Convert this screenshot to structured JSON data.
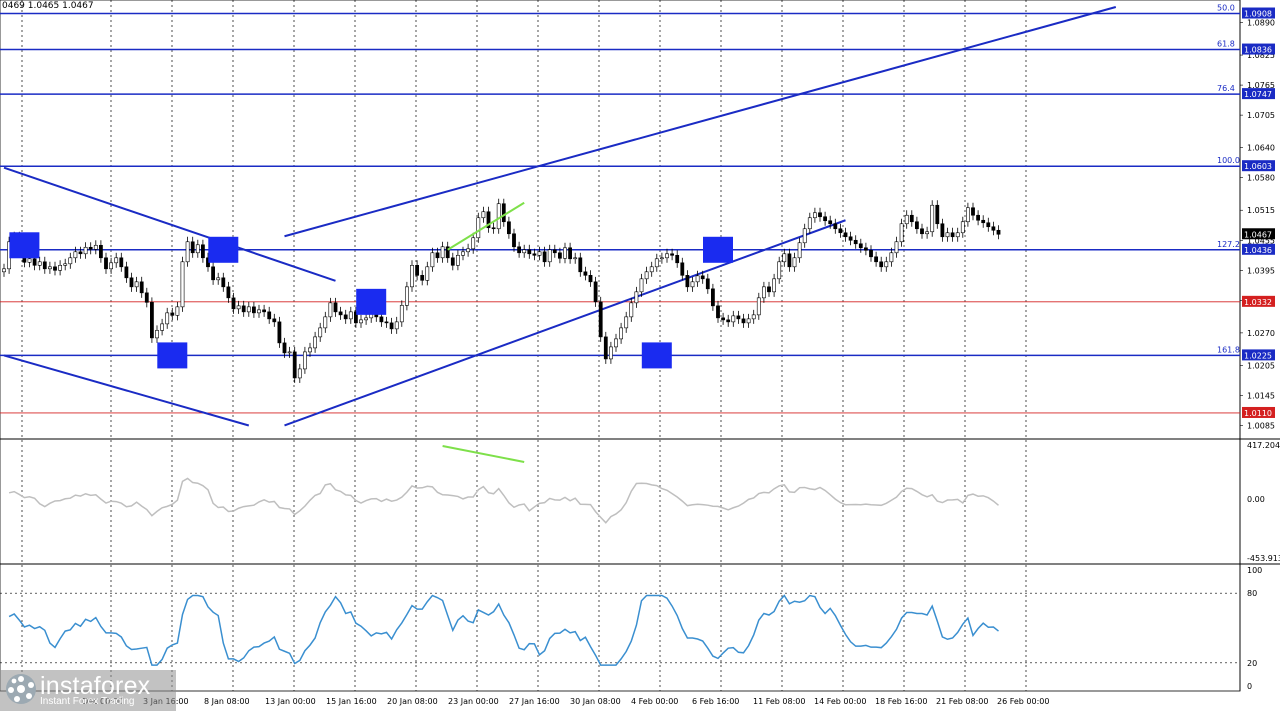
{
  "header": {
    "ohlc_text": "0469 1.0465 1.0467"
  },
  "brand": {
    "name": "instaforex",
    "tagline": "Instant Forex Trading"
  },
  "chart_data": [
    {
      "panel": "price",
      "type": "candlestick",
      "ylim": [
        1.006,
        1.0935
      ],
      "y_ticks": [
        "1.0890",
        "1.0825",
        "1.0765",
        "1.0705",
        "1.0640",
        "1.0580",
        "1.0515",
        "1.0455",
        "1.0395",
        "1.0335",
        "1.0270",
        "1.0205",
        "1.0145",
        "1.0085"
      ],
      "current_price": "1.0467",
      "levels": [
        {
          "value": 1.0908,
          "label": "1.0908",
          "fib": "50.0",
          "color": "#1a2bc4"
        },
        {
          "value": 1.0836,
          "label": "1.0836",
          "fib": "61.8",
          "color": "#1a2bc4"
        },
        {
          "value": 1.0747,
          "label": "1.0747",
          "fib": "76.4",
          "color": "#1a2bc4"
        },
        {
          "value": 1.0603,
          "label": "1.0603",
          "fib": "100.0",
          "color": "#1a2bc4"
        },
        {
          "value": 1.0436,
          "label": "1.0436",
          "fib": "127.2",
          "color": "#1a2bc4"
        },
        {
          "value": 1.0225,
          "label": "1.0225",
          "fib": "161.8",
          "color": "#1a2bc4"
        },
        {
          "value": 1.0332,
          "label": "1.0332",
          "fib": "",
          "color": "#d42020"
        },
        {
          "value": 1.011,
          "label": "1.0110",
          "fib": "",
          "color": "#d42020"
        }
      ],
      "close_series": [
        1.0398,
        1.0452,
        1.0462,
        1.0438,
        1.0411,
        1.0418,
        1.0405,
        1.0412,
        1.0398,
        1.0402,
        1.0395,
        1.0405,
        1.0408,
        1.042,
        1.0432,
        1.0428,
        1.0441,
        1.0437,
        1.0445,
        1.042,
        1.0398,
        1.041,
        1.042,
        1.0402,
        1.038,
        1.0362,
        1.0372,
        1.035,
        1.0331,
        1.026,
        1.0275,
        1.0288,
        1.031,
        1.0305,
        1.0322,
        1.0412,
        1.0452,
        1.043,
        1.0446,
        1.042,
        1.0402,
        1.0376,
        1.038,
        1.0362,
        1.034,
        1.0318,
        1.0324,
        1.0312,
        1.0322,
        1.031,
        1.0316,
        1.0312,
        1.0298,
        1.0292,
        1.025,
        1.023,
        1.0232,
        1.018,
        1.0198,
        1.0232,
        1.024,
        1.0262,
        1.028,
        1.0302,
        1.033,
        1.0312,
        1.0306,
        1.0298,
        1.0312,
        1.029,
        1.0296,
        1.03,
        1.0308,
        1.0302,
        1.0292,
        1.029,
        1.0278,
        1.0292,
        1.0325,
        1.0362,
        1.0405,
        1.0385,
        1.0375,
        1.0402,
        1.043,
        1.042,
        1.0442,
        1.042,
        1.0405,
        1.0425,
        1.0432,
        1.0438,
        1.046,
        1.05,
        1.0512,
        1.048,
        1.0478,
        1.0528,
        1.0492,
        1.0468,
        1.0442,
        1.043,
        1.0436,
        1.0428,
        1.0425,
        1.0432,
        1.0412,
        1.0436,
        1.043,
        1.0419,
        1.044,
        1.0418,
        1.042,
        1.0392,
        1.0385,
        1.0372,
        1.0332,
        1.0262,
        1.0218,
        1.0242,
        1.0258,
        1.028,
        1.0302,
        1.033,
        1.0352,
        1.0378,
        1.0392,
        1.0402,
        1.0418,
        1.042,
        1.0428,
        1.0425,
        1.041,
        1.0385,
        1.0362,
        1.0372,
        1.0384,
        1.0378,
        1.0358,
        1.0324,
        1.03,
        1.0296,
        1.0292,
        1.0304,
        1.0298,
        1.029,
        1.0298,
        1.0306,
        1.034,
        1.0362,
        1.0352,
        1.0378,
        1.0412,
        1.0428,
        1.0402,
        1.042,
        1.045,
        1.0478,
        1.05,
        1.051,
        1.0502,
        1.0494,
        1.0488,
        1.0478,
        1.047,
        1.0462,
        1.0455,
        1.0448,
        1.044,
        1.0435,
        1.0422,
        1.0412,
        1.0402,
        1.0412,
        1.043,
        1.0452,
        1.0488,
        1.0505,
        1.0492,
        1.0478,
        1.0468,
        1.0472,
        1.0525,
        1.0488,
        1.0462,
        1.047,
        1.0462,
        1.047,
        1.0492,
        1.052,
        1.0505,
        1.0495,
        1.049,
        1.0482,
        1.0475,
        1.0467
      ],
      "trend_lines": [
        {
          "from": [
            0,
            1.06
          ],
          "to": [
            65,
            1.0374
          ]
        },
        {
          "from": [
            0,
            1.0225
          ],
          "to": [
            48,
            1.0085
          ]
        },
        {
          "from": [
            55,
            1.0085
          ],
          "to": [
            165,
            1.0495
          ]
        },
        {
          "from": [
            55,
            1.0463
          ],
          "to": [
            218,
            1.0921
          ]
        }
      ]
    },
    {
      "panel": "cci",
      "type": "line",
      "y_ticks": [
        "417.2044",
        "0.00",
        "-453.913"
      ],
      "ylim": [
        -453.913,
        417.2044
      ],
      "color": "#bfbfbf"
    },
    {
      "panel": "rsi",
      "type": "line",
      "y_ticks": [
        "100",
        "80",
        "20",
        "0"
      ],
      "ylim": [
        0,
        100
      ],
      "color": "#3a8fd0"
    },
    {
      "panel": "time_axis",
      "type": "axis",
      "labels": [
        "Dec 00:00",
        "3 Jan 16:00",
        "8 Jan 08:00",
        "13 Jan 00:00",
        "15 Jan 16:00",
        "20 Jan 08:00",
        "23 Jan 00:00",
        "27 Jan 16:00",
        "30 Jan 08:00",
        "4 Feb 00:00",
        "6 Feb 16:00",
        "11 Feb 08:00",
        "14 Feb 00:00",
        "18 Feb 16:00",
        "21 Feb 08:00",
        "26 Feb 00:00"
      ]
    }
  ]
}
